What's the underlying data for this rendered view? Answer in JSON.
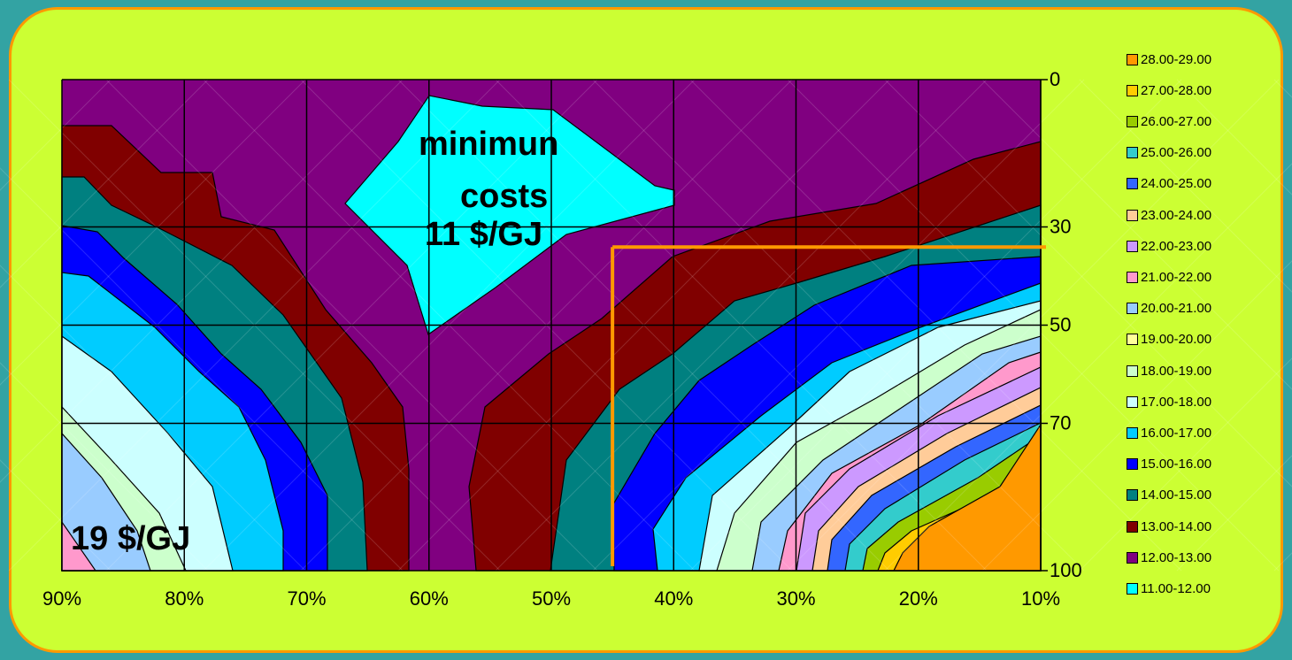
{
  "chart_data": {
    "type": "contour",
    "x_ticks": [
      "90%",
      "80%",
      "70%",
      "60%",
      "50%",
      "40%",
      "30%",
      "20%",
      "10%"
    ],
    "y_ticks": [
      "0",
      "30",
      "50",
      "70",
      "100"
    ],
    "annotations": {
      "minimum_line1": "minimun",
      "minimum_line2": "costs",
      "minimum_value": "11 $/GJ",
      "corner_value": "19 $/GJ"
    },
    "optimum_marker": {
      "x": "45%",
      "y": 35,
      "color": "#ff9900"
    },
    "legend": [
      {
        "label": "28.00-29.00",
        "color": "#ff9900"
      },
      {
        "label": "27.00-28.00",
        "color": "#ffcc00"
      },
      {
        "label": "26.00-27.00",
        "color": "#99cc00"
      },
      {
        "label": "25.00-26.00",
        "color": "#33cccc"
      },
      {
        "label": "24.00-25.00",
        "color": "#3366ff"
      },
      {
        "label": "23.00-24.00",
        "color": "#ffcc99"
      },
      {
        "label": "22.00-23.00",
        "color": "#cc99ff"
      },
      {
        "label": "21.00-22.00",
        "color": "#ff99cc"
      },
      {
        "label": "20.00-21.00",
        "color": "#99ccff"
      },
      {
        "label": "19.00-20.00",
        "color": "#ffff99"
      },
      {
        "label": "18.00-19.00",
        "color": "#ccffcc"
      },
      {
        "label": "17.00-18.00",
        "color": "#ccffff"
      },
      {
        "label": "16.00-17.00",
        "color": "#00ccff"
      },
      {
        "label": "15.00-16.00",
        "color": "#0000ff"
      },
      {
        "label": "14.00-15.00",
        "color": "#008080"
      },
      {
        "label": "13.00-14.00",
        "color": "#800000"
      },
      {
        "label": "12.00-13.00",
        "color": "#800080"
      },
      {
        "label": "11.00-12.00",
        "color": "#00ffff"
      }
    ]
  }
}
